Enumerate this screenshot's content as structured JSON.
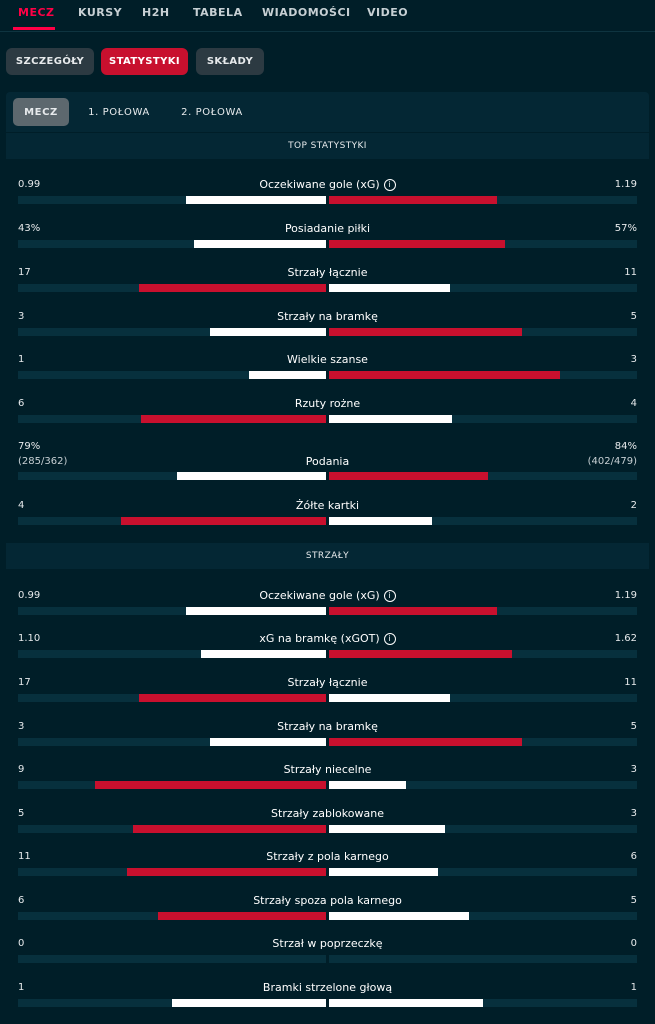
{
  "topnav": {
    "tabs": [
      "MECZ",
      "KURSY",
      "H2H",
      "TABELA",
      "WIADOMOŚCI",
      "VIDEO"
    ]
  },
  "pills": [
    "SZCZEGÓŁY",
    "STATYSTYKI",
    "SKŁADY"
  ],
  "subtabs": [
    "MECZ",
    "1. POŁOWA",
    "2. POŁOWA"
  ],
  "colors": {
    "accent": "#ff0046",
    "bar_leader": "#c8102e",
    "bar_other": "#ffffff",
    "background": "#001e28"
  },
  "sections": [
    {
      "title": "TOP STATYSTYKI",
      "stats": [
        {
          "label": "Oczekiwane gole (xG)",
          "info": true,
          "home": "0.99",
          "away": "1.19",
          "home_val": 0.99,
          "away_val": 1.19
        },
        {
          "label": "Posiadanie piłki",
          "home": "43%",
          "away": "57%",
          "home_val": 43,
          "away_val": 57
        },
        {
          "label": "Strzały łącznie",
          "home": "17",
          "away": "11",
          "home_val": 17,
          "away_val": 11
        },
        {
          "label": "Strzały na bramkę",
          "home": "3",
          "away": "5",
          "home_val": 3,
          "away_val": 5
        },
        {
          "label": "Wielkie szanse",
          "home": "1",
          "away": "3",
          "home_val": 1,
          "away_val": 3
        },
        {
          "label": "Rzuty rożne",
          "home": "6",
          "away": "4",
          "home_val": 6,
          "away_val": 4
        },
        {
          "label": "Podania",
          "home": "79%",
          "away": "84%",
          "home_sub": "(285/362)",
          "away_sub": "(402/479)",
          "home_val": 79,
          "away_val": 84
        },
        {
          "label": "Żółte kartki",
          "home": "4",
          "away": "2",
          "home_val": 4,
          "away_val": 2
        }
      ]
    },
    {
      "title": "STRZAŁY",
      "stats": [
        {
          "label": "Oczekiwane gole (xG)",
          "info": true,
          "home": "0.99",
          "away": "1.19",
          "home_val": 0.99,
          "away_val": 1.19
        },
        {
          "label": "xG na bramkę (xGOT)",
          "info": true,
          "home": "1.10",
          "away": "1.62",
          "home_val": 1.1,
          "away_val": 1.62
        },
        {
          "label": "Strzały łącznie",
          "home": "17",
          "away": "11",
          "home_val": 17,
          "away_val": 11
        },
        {
          "label": "Strzały na bramkę",
          "home": "3",
          "away": "5",
          "home_val": 3,
          "away_val": 5
        },
        {
          "label": "Strzały niecelne",
          "home": "9",
          "away": "3",
          "home_val": 9,
          "away_val": 3
        },
        {
          "label": "Strzały zablokowane",
          "home": "5",
          "away": "3",
          "home_val": 5,
          "away_val": 3
        },
        {
          "label": "Strzały z pola karnego",
          "home": "11",
          "away": "6",
          "home_val": 11,
          "away_val": 6
        },
        {
          "label": "Strzały spoza pola karnego",
          "home": "6",
          "away": "5",
          "home_val": 6,
          "away_val": 5
        },
        {
          "label": "Strzał w poprzeczkę",
          "home": "0",
          "away": "0",
          "home_val": 0,
          "away_val": 0
        },
        {
          "label": "Bramki strzelone głową",
          "home": "1",
          "away": "1",
          "home_val": 1,
          "away_val": 1
        }
      ]
    }
  ]
}
